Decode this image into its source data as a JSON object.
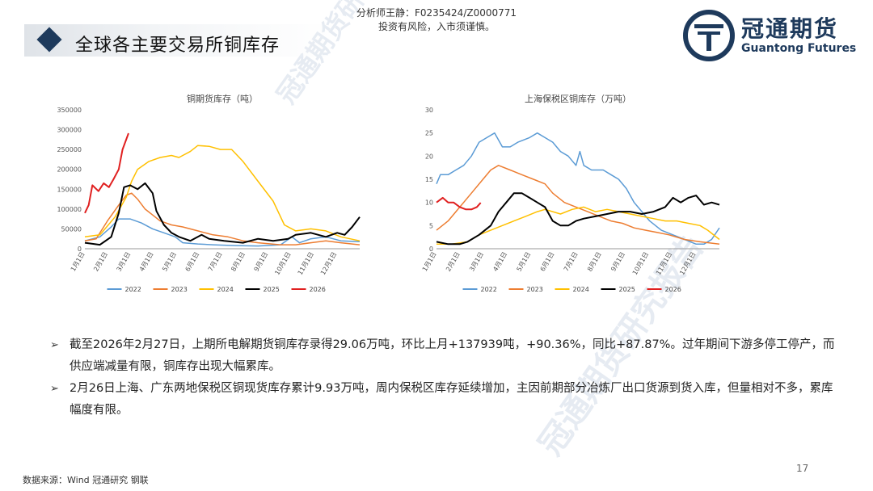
{
  "header": {
    "analyst": "分析师王静：F0235424/Z0000771",
    "risk": "投资有风险，入市须谨慎。",
    "title": "全球各主要交易所铜库存"
  },
  "logo": {
    "cn": "冠通期货",
    "en": "Guantong Futures"
  },
  "watermark": "冠通期货研究报告",
  "colors": {
    "s2022": "#5b9bd5",
    "s2023": "#ed7d31",
    "s2024": "#ffc000",
    "s2025": "#000000",
    "s2026": "#e02020",
    "brand": "#1e3a5c"
  },
  "chart_data": [
    {
      "type": "line",
      "title": "铜期货库存（吨）",
      "ylim": [
        0,
        350000
      ],
      "yticks": [
        "0",
        "50000",
        "100000",
        "150000",
        "200000",
        "250000",
        "300000",
        "350000"
      ],
      "xticks": [
        "1月1日",
        "2月1日",
        "3月1日",
        "4月1日",
        "5月1日",
        "6月1日",
        "7月1日",
        "8月1日",
        "9月1日",
        "10月1日",
        "11月1日",
        "12月1日"
      ],
      "xmax": 365,
      "grid": false,
      "legend_position": "bottom",
      "series": [
        {
          "name": "2022",
          "color": "#5b9bd5",
          "points": [
            [
              0,
              20000
            ],
            [
              20,
              30000
            ],
            [
              35,
              55000
            ],
            [
              45,
              75000
            ],
            [
              60,
              75000
            ],
            [
              75,
              65000
            ],
            [
              90,
              50000
            ],
            [
              105,
              40000
            ],
            [
              120,
              30000
            ],
            [
              130,
              15000
            ],
            [
              150,
              12000
            ],
            [
              170,
              10000
            ],
            [
              200,
              8000
            ],
            [
              230,
              7000
            ],
            [
              260,
              10000
            ],
            [
              275,
              30000
            ],
            [
              285,
              15000
            ],
            [
              300,
              25000
            ],
            [
              320,
              30000
            ],
            [
              340,
              20000
            ],
            [
              365,
              18000
            ]
          ]
        },
        {
          "name": "2023",
          "color": "#ed7d31",
          "points": [
            [
              0,
              20000
            ],
            [
              15,
              25000
            ],
            [
              30,
              70000
            ],
            [
              45,
              110000
            ],
            [
              55,
              135000
            ],
            [
              62,
              140000
            ],
            [
              70,
              125000
            ],
            [
              80,
              100000
            ],
            [
              90,
              85000
            ],
            [
              100,
              70000
            ],
            [
              115,
              60000
            ],
            [
              130,
              55000
            ],
            [
              150,
              45000
            ],
            [
              170,
              35000
            ],
            [
              190,
              30000
            ],
            [
              210,
              20000
            ],
            [
              230,
              15000
            ],
            [
              260,
              10000
            ],
            [
              280,
              10000
            ],
            [
              300,
              15000
            ],
            [
              320,
              20000
            ],
            [
              340,
              15000
            ],
            [
              365,
              10000
            ]
          ]
        },
        {
          "name": "2024",
          "color": "#ffc000",
          "points": [
            [
              0,
              30000
            ],
            [
              20,
              35000
            ],
            [
              40,
              80000
            ],
            [
              55,
              130000
            ],
            [
              62,
              170000
            ],
            [
              70,
              200000
            ],
            [
              85,
              220000
            ],
            [
              100,
              230000
            ],
            [
              115,
              235000
            ],
            [
              125,
              230000
            ],
            [
              140,
              245000
            ],
            [
              150,
              260000
            ],
            [
              165,
              258000
            ],
            [
              180,
              250000
            ],
            [
              195,
              250000
            ],
            [
              210,
              220000
            ],
            [
              230,
              170000
            ],
            [
              250,
              120000
            ],
            [
              265,
              60000
            ],
            [
              280,
              45000
            ],
            [
              300,
              50000
            ],
            [
              320,
              45000
            ],
            [
              340,
              30000
            ],
            [
              365,
              20000
            ]
          ]
        },
        {
          "name": "2025",
          "color": "#000000",
          "points": [
            [
              0,
              15000
            ],
            [
              20,
              10000
            ],
            [
              35,
              30000
            ],
            [
              45,
              90000
            ],
            [
              52,
              155000
            ],
            [
              60,
              160000
            ],
            [
              70,
              150000
            ],
            [
              80,
              165000
            ],
            [
              90,
              140000
            ],
            [
              95,
              95000
            ],
            [
              105,
              60000
            ],
            [
              115,
              40000
            ],
            [
              125,
              30000
            ],
            [
              140,
              20000
            ],
            [
              155,
              35000
            ],
            [
              165,
              25000
            ],
            [
              185,
              20000
            ],
            [
              210,
              15000
            ],
            [
              230,
              25000
            ],
            [
              250,
              20000
            ],
            [
              270,
              25000
            ],
            [
              280,
              35000
            ],
            [
              300,
              40000
            ],
            [
              320,
              30000
            ],
            [
              335,
              40000
            ],
            [
              345,
              35000
            ],
            [
              355,
              55000
            ],
            [
              365,
              80000
            ]
          ]
        },
        {
          "name": "2026",
          "color": "#e02020",
          "points": [
            [
              0,
              90000
            ],
            [
              5,
              110000
            ],
            [
              10,
              160000
            ],
            [
              18,
              145000
            ],
            [
              25,
              165000
            ],
            [
              32,
              155000
            ],
            [
              38,
              175000
            ],
            [
              45,
              200000
            ],
            [
              50,
              250000
            ],
            [
              58,
              291000
            ]
          ]
        }
      ]
    },
    {
      "type": "line",
      "title": "上海保税区铜库存（万吨）",
      "ylim": [
        0,
        30
      ],
      "yticks": [
        "0",
        "5",
        "10",
        "15",
        "20",
        "25",
        "30"
      ],
      "xticks": [
        "1月1日",
        "2月1日",
        "3月1日",
        "4月1日",
        "5月1日",
        "6月1日",
        "7月1日",
        "8月1日",
        "9月1日",
        "10月1日",
        "11月1日",
        "12月1日"
      ],
      "xmax": 365,
      "grid": false,
      "legend_position": "bottom",
      "series": [
        {
          "name": "2022",
          "color": "#5b9bd5",
          "points": [
            [
              0,
              14
            ],
            [
              5,
              16
            ],
            [
              15,
              16
            ],
            [
              25,
              17
            ],
            [
              35,
              18
            ],
            [
              45,
              20
            ],
            [
              55,
              23
            ],
            [
              65,
              24
            ],
            [
              75,
              25
            ],
            [
              85,
              22
            ],
            [
              95,
              22
            ],
            [
              105,
              23
            ],
            [
              120,
              24
            ],
            [
              130,
              25
            ],
            [
              140,
              24
            ],
            [
              150,
              23
            ],
            [
              160,
              21
            ],
            [
              170,
              20
            ],
            [
              180,
              18
            ],
            [
              185,
              21
            ],
            [
              190,
              18
            ],
            [
              200,
              17
            ],
            [
              215,
              17
            ],
            [
              225,
              16
            ],
            [
              235,
              15
            ],
            [
              245,
              13
            ],
            [
              255,
              10
            ],
            [
              265,
              8
            ],
            [
              275,
              6
            ],
            [
              290,
              4
            ],
            [
              305,
              3
            ],
            [
              320,
              2
            ],
            [
              335,
              1
            ],
            [
              345,
              1
            ],
            [
              355,
              2
            ],
            [
              365,
              4.5
            ]
          ]
        },
        {
          "name": "2023",
          "color": "#ed7d31",
          "points": [
            [
              0,
              4
            ],
            [
              15,
              6
            ],
            [
              30,
              9
            ],
            [
              45,
              12
            ],
            [
              60,
              15
            ],
            [
              70,
              17
            ],
            [
              80,
              18
            ],
            [
              95,
              17
            ],
            [
              110,
              16
            ],
            [
              125,
              15
            ],
            [
              140,
              14
            ],
            [
              150,
              12
            ],
            [
              165,
              10
            ],
            [
              180,
              9
            ],
            [
              195,
              8
            ],
            [
              210,
              7
            ],
            [
              225,
              6
            ],
            [
              240,
              5.5
            ],
            [
              255,
              4.5
            ],
            [
              270,
              4
            ],
            [
              285,
              3.5
            ],
            [
              300,
              3
            ],
            [
              320,
              2
            ],
            [
              340,
              1.5
            ],
            [
              365,
              1
            ]
          ]
        },
        {
          "name": "2024",
          "color": "#ffc000",
          "points": [
            [
              0,
              1
            ],
            [
              20,
              1
            ],
            [
              40,
              1.5
            ],
            [
              55,
              3
            ],
            [
              70,
              4
            ],
            [
              85,
              5
            ],
            [
              100,
              6
            ],
            [
              115,
              7
            ],
            [
              130,
              8
            ],
            [
              140,
              8.5
            ],
            [
              150,
              8
            ],
            [
              160,
              7.5
            ],
            [
              175,
              8.5
            ],
            [
              190,
              9
            ],
            [
              205,
              8
            ],
            [
              220,
              8.5
            ],
            [
              235,
              8
            ],
            [
              250,
              7.5
            ],
            [
              265,
              7
            ],
            [
              280,
              6.5
            ],
            [
              295,
              6
            ],
            [
              310,
              6
            ],
            [
              325,
              5.5
            ],
            [
              340,
              5
            ],
            [
              350,
              4
            ],
            [
              365,
              2
            ]
          ]
        },
        {
          "name": "2025",
          "color": "#000000",
          "points": [
            [
              0,
              1.5
            ],
            [
              15,
              1
            ],
            [
              30,
              1
            ],
            [
              40,
              1.5
            ],
            [
              55,
              3
            ],
            [
              70,
              5
            ],
            [
              80,
              8
            ],
            [
              90,
              10
            ],
            [
              100,
              12
            ],
            [
              110,
              12
            ],
            [
              120,
              11
            ],
            [
              130,
              10
            ],
            [
              140,
              9
            ],
            [
              150,
              6
            ],
            [
              160,
              5
            ],
            [
              170,
              5
            ],
            [
              180,
              6
            ],
            [
              190,
              6.5
            ],
            [
              205,
              7
            ],
            [
              220,
              7.5
            ],
            [
              235,
              8
            ],
            [
              250,
              8
            ],
            [
              265,
              7.5
            ],
            [
              280,
              8
            ],
            [
              295,
              9
            ],
            [
              305,
              11
            ],
            [
              315,
              10
            ],
            [
              325,
              11
            ],
            [
              335,
              11.5
            ],
            [
              345,
              9.5
            ],
            [
              355,
              10
            ],
            [
              365,
              9.5
            ]
          ]
        },
        {
          "name": "2026",
          "color": "#e02020",
          "points": [
            [
              0,
              10
            ],
            [
              8,
              11
            ],
            [
              15,
              10
            ],
            [
              22,
              10
            ],
            [
              30,
              9
            ],
            [
              38,
              8.5
            ],
            [
              45,
              8.5
            ],
            [
              52,
              9
            ],
            [
              57,
              9.93
            ]
          ]
        }
      ]
    }
  ],
  "bullets": [
    "截至2026年2月27日，上期所电解期货铜库存录得29.06万吨，环比上月+137939吨，+90.36%，同比+87.87%。过年期间下游多停工停产，而供应端减量有限，铜库存出现大幅累库。",
    "2月26日上海、广东两地保税区铜现货库存累计9.93万吨，周内保税区库存延续增加，主因前期部分冶炼厂出口货源到货入库，但量相对不多，累库幅度有限。"
  ],
  "footer": {
    "source": "数据来源：Wind 冠通研究 钢联",
    "page": "17"
  }
}
